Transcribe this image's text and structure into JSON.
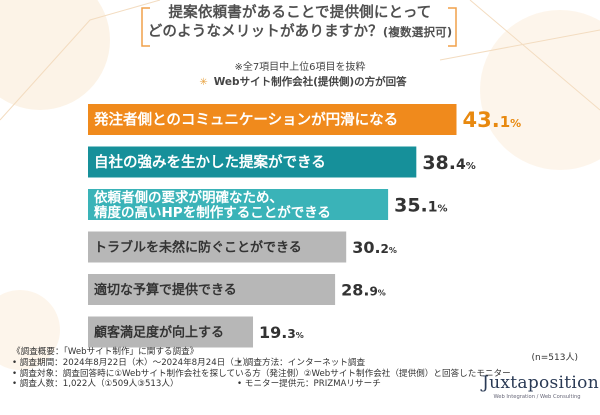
{
  "title": {
    "line1": "提案依頼書があることで提供側にとって",
    "line2": "どのようなメリットがありますか？",
    "line2_suffix": "(複数選択可)"
  },
  "note": "※全7項目中上位6項目を抜粋",
  "respondent": "Webサイト制作会社(提供側)の方が回答",
  "sample_size": "(n=513人)",
  "colors": {
    "orange": "#f08a1c",
    "teal_dark": "#16909a",
    "teal_light": "#3ab3b8",
    "gray": "#b7b7b7",
    "value_orange": "#e8890f",
    "value_dark": "#333333"
  },
  "chart_data": {
    "type": "bar",
    "orientation": "horizontal",
    "unit": "%",
    "categories": [
      "発注者側とのコミュニケーションが円滑になる",
      "自社の強みを生かした提案ができる",
      "依頼者側の要求が明確なため、精度の高いHPを制作することができる",
      "トラブルを未然に防ぐことができる",
      "適切な予算で提供できる",
      "顧客満足度が向上する"
    ],
    "label_lines": [
      [
        "発注者側とのコミュニケーションが円滑になる"
      ],
      [
        "自社の強みを生かした提案ができる"
      ],
      [
        "依頼者側の要求が明確なため、",
        "精度の高いHPを制作することができる"
      ],
      [
        "トラブルを未然に防ぐことができる"
      ],
      [
        "適切な予算で提供できる"
      ],
      [
        "顧客満足度が向上する"
      ]
    ],
    "values": [
      43.1,
      38.4,
      35.1,
      30.2,
      28.9,
      19.3
    ],
    "value_labels": [
      "43.1",
      "38.4",
      "35.1",
      "30.2",
      "28.9",
      "19.3"
    ],
    "percent_sign": "%",
    "xlim": [
      0,
      50
    ],
    "grid": false,
    "legend": "none"
  },
  "footer": {
    "heading": "《調査概要：「Webサイト制作」に関する調査》",
    "rows": [
      [
        "• 調査期間：2024年8月22日（木）〜2024年8月24日（土）",
        "• 調査方法：インターネット調査"
      ],
      [
        "• 調査対象：調査回答時に①Webサイト制作会社を探している方（発注側）②Webサイト制作会社（提供側）と回答したモニター",
        ""
      ],
      [
        "• 調査人数：1,022人（①509人③513人）",
        "• モニター提供元：PRIZMAリサーチ"
      ]
    ]
  },
  "logo": {
    "name": "Juxtaposition",
    "tagline": "Web Integration / Web Consulting"
  }
}
